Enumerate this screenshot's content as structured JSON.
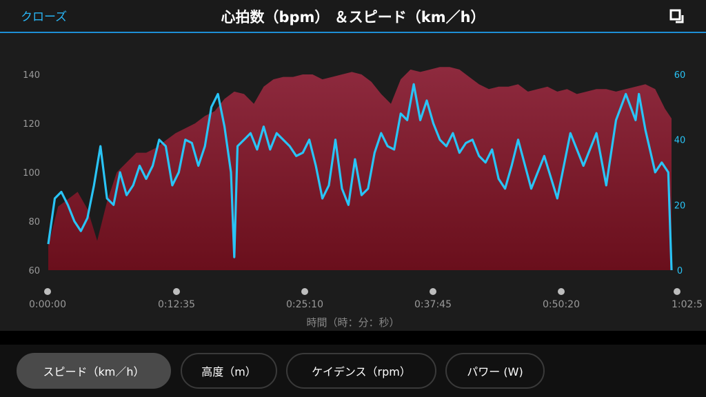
{
  "header": {
    "close_label": "クローズ",
    "title": "心拍数（bpm） ＆スピード（km／h）"
  },
  "tabs": [
    {
      "label": "スピード（km／h）",
      "active": true
    },
    {
      "label": "高度（m）",
      "active": false
    },
    {
      "label": "ケイデンス（rpm）",
      "active": false
    },
    {
      "label": "パワー (W)",
      "active": false
    }
  ],
  "chart_data": {
    "type": "area",
    "xlabel": "時間（時：分：秒）",
    "x_ticks": [
      "0:00:00",
      "0:12:35",
      "0:25:10",
      "0:37:45",
      "0:50:20",
      "1:02:5"
    ],
    "x_range_sec": [
      0,
      3820
    ],
    "y_left": {
      "ticks": [
        60,
        80,
        100,
        120,
        140
      ],
      "range": [
        60,
        140
      ]
    },
    "y_right": {
      "ticks": [
        0,
        20,
        40,
        60
      ],
      "range": [
        0,
        60
      ]
    },
    "series": [
      {
        "name": "心拍数（bpm）",
        "axis": "left",
        "render": "area",
        "color": "#8b1a2b",
        "x": [
          0,
          60,
          120,
          180,
          240,
          300,
          360,
          420,
          480,
          540,
          600,
          660,
          720,
          780,
          840,
          900,
          960,
          1020,
          1080,
          1140,
          1200,
          1260,
          1320,
          1380,
          1440,
          1500,
          1560,
          1620,
          1680,
          1740,
          1800,
          1860,
          1920,
          1980,
          2040,
          2100,
          2160,
          2220,
          2280,
          2340,
          2400,
          2460,
          2520,
          2580,
          2640,
          2700,
          2760,
          2820,
          2880,
          2940,
          3000,
          3060,
          3120,
          3180,
          3240,
          3300,
          3360,
          3420,
          3480,
          3540,
          3600,
          3660,
          3720,
          3780,
          3820
        ],
        "values": [
          70,
          86,
          89,
          92,
          85,
          72,
          88,
          100,
          104,
          108,
          108,
          110,
          113,
          116,
          118,
          120,
          123,
          125,
          130,
          133,
          132,
          128,
          135,
          138,
          139,
          139,
          140,
          140,
          138,
          139,
          140,
          141,
          140,
          137,
          132,
          128,
          138,
          142,
          141,
          142,
          143,
          143,
          142,
          139,
          136,
          134,
          135,
          135,
          136,
          133,
          134,
          135,
          133,
          134,
          132,
          133,
          134,
          134,
          133,
          134,
          135,
          136,
          134,
          126,
          122
        ]
      },
      {
        "name": "スピード（km／h）",
        "axis": "right",
        "render": "line",
        "color": "#29c4f6",
        "x": [
          0,
          40,
          80,
          120,
          160,
          200,
          240,
          280,
          320,
          360,
          400,
          440,
          480,
          520,
          560,
          600,
          640,
          680,
          720,
          760,
          800,
          840,
          880,
          920,
          960,
          1000,
          1040,
          1080,
          1120,
          1140,
          1160,
          1200,
          1240,
          1280,
          1320,
          1360,
          1400,
          1440,
          1480,
          1520,
          1560,
          1600,
          1640,
          1680,
          1720,
          1760,
          1800,
          1840,
          1880,
          1920,
          1960,
          2000,
          2040,
          2080,
          2120,
          2160,
          2200,
          2240,
          2280,
          2320,
          2360,
          2400,
          2440,
          2480,
          2520,
          2560,
          2600,
          2640,
          2680,
          2720,
          2760,
          2800,
          2840,
          2880,
          2960,
          3040,
          3120,
          3200,
          3280,
          3360,
          3420,
          3480,
          3540,
          3600,
          3620,
          3660,
          3720,
          3760,
          3800,
          3820
        ],
        "values": [
          8,
          22,
          24,
          20,
          15,
          12,
          16,
          26,
          38,
          22,
          20,
          30,
          23,
          26,
          32,
          28,
          32,
          40,
          38,
          26,
          30,
          40,
          39,
          32,
          38,
          50,
          54,
          44,
          30,
          4,
          38,
          40,
          42,
          37,
          44,
          37,
          42,
          40,
          38,
          35,
          36,
          40,
          32,
          22,
          26,
          40,
          25,
          20,
          34,
          23,
          25,
          36,
          42,
          38,
          37,
          48,
          46,
          57,
          46,
          52,
          45,
          40,
          38,
          42,
          36,
          39,
          40,
          35,
          33,
          37,
          28,
          25,
          32,
          40,
          25,
          35,
          22,
          42,
          32,
          42,
          26,
          46,
          54,
          46,
          54,
          43,
          30,
          33,
          30,
          0
        ]
      }
    ]
  }
}
